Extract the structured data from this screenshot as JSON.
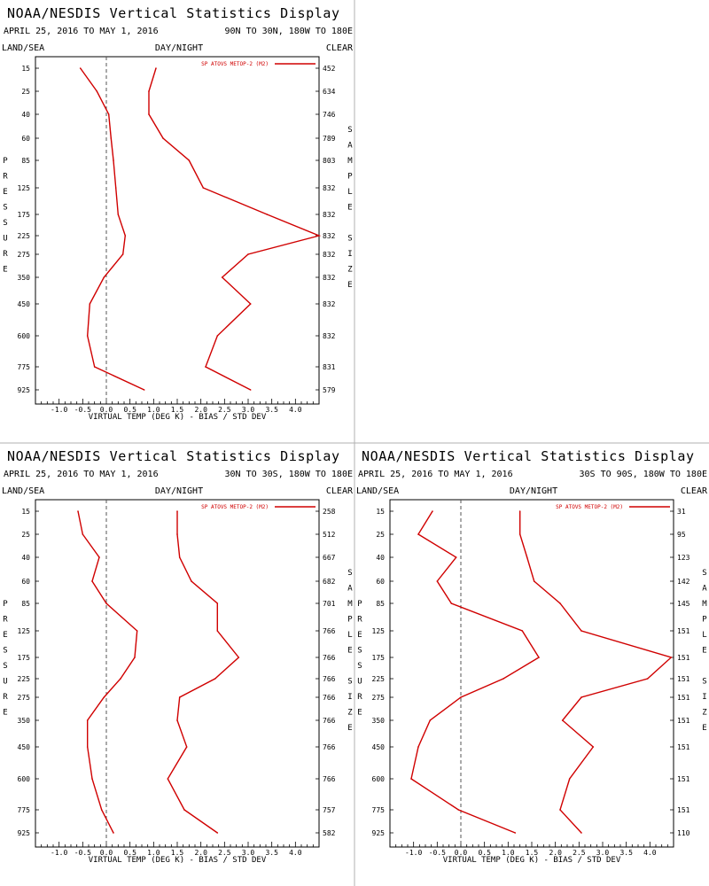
{
  "title": "NOAA/NESDIS Vertical Statistics Display",
  "date_range": "APRIL 25, 2016 TO MAY 1, 2016",
  "land_sea": "LAND/SEA",
  "day_night": "DAY/NIGHT",
  "clear": "CLEAR",
  "pressure_label": "PRESSURE",
  "sample_size_label": "SAMPLE SIZE",
  "xlabel": "VIRTUAL TEMP (DEG K) - BIAS / STD DEV",
  "series_color": "#d00000",
  "chart_data": [
    {
      "type": "line",
      "region": "90N TO 30N, 180W TO 180E",
      "legend": "SP ATOVS METOP-2 (M2)",
      "xlim": [
        -1.5,
        4.5
      ],
      "xticks": [
        "-1.0",
        "-0.5",
        "0.0",
        "0.5",
        "1.0",
        "1.5",
        "2.0",
        "2.5",
        "3.0",
        "3.5",
        "4.0"
      ],
      "pressure_levels": [
        "15",
        "25",
        "40",
        "60",
        "85",
        "125",
        "175",
        "225",
        "275",
        "350",
        "450",
        "600",
        "775",
        "925"
      ],
      "sample_size": [
        "452",
        "634",
        "746",
        "789",
        "803",
        "832",
        "832",
        "832",
        "832",
        "832",
        "832",
        "832",
        "831",
        "579"
      ],
      "series": [
        {
          "name": "BIAS",
          "values": [
            -0.55,
            -0.2,
            0.05,
            0.1,
            0.15,
            0.2,
            0.25,
            0.4,
            0.35,
            -0.05,
            -0.35,
            -0.4,
            -0.25,
            0.8
          ]
        },
        {
          "name": "STD DEV",
          "values": [
            1.05,
            0.9,
            0.9,
            1.2,
            1.75,
            2.05,
            3.4,
            4.5,
            3.0,
            2.45,
            3.05,
            2.35,
            2.1,
            3.05
          ]
        }
      ]
    },
    {
      "type": "line",
      "region": "30N TO 30S, 180W TO 180E",
      "legend": "SP ATOVS METOP-2 (M2)",
      "xlim": [
        -1.5,
        4.5
      ],
      "xticks": [
        "-1.0",
        "-0.5",
        "0.0",
        "0.5",
        "1.0",
        "1.5",
        "2.0",
        "2.5",
        "3.0",
        "3.5",
        "4.0"
      ],
      "pressure_levels": [
        "15",
        "25",
        "40",
        "60",
        "85",
        "125",
        "175",
        "225",
        "275",
        "350",
        "450",
        "600",
        "775",
        "925"
      ],
      "sample_size": [
        "258",
        "512",
        "667",
        "682",
        "701",
        "766",
        "766",
        "766",
        "766",
        "766",
        "766",
        "766",
        "757",
        "582"
      ],
      "series": [
        {
          "name": "BIAS",
          "values": [
            -0.6,
            -0.5,
            -0.15,
            -0.3,
            0.0,
            0.65,
            0.6,
            0.3,
            -0.05,
            -0.4,
            -0.4,
            -0.3,
            -0.1,
            0.15
          ]
        },
        {
          "name": "STD DEV",
          "values": [
            1.5,
            1.5,
            1.55,
            1.8,
            2.35,
            2.35,
            2.8,
            2.3,
            1.55,
            1.5,
            1.7,
            1.3,
            1.65,
            2.35
          ]
        }
      ]
    },
    {
      "type": "line",
      "region": "30S TO 90S, 180W TO 180E",
      "legend": "SP ATOVS METOP-2 (M2)",
      "xlim": [
        -1.5,
        4.5
      ],
      "xticks": [
        "-1.0",
        "-0.5",
        "0.0",
        "0.5",
        "1.0",
        "1.5",
        "2.0",
        "2.5",
        "3.0",
        "3.5",
        "4.0"
      ],
      "pressure_levels": [
        "15",
        "25",
        "40",
        "60",
        "85",
        "125",
        "175",
        "225",
        "275",
        "350",
        "450",
        "600",
        "775",
        "925"
      ],
      "sample_size": [
        "31",
        "95",
        "123",
        "142",
        "145",
        "151",
        "151",
        "151",
        "151",
        "151",
        "151",
        "151",
        "151",
        "110"
      ],
      "series": [
        {
          "name": "BIAS",
          "values": [
            -0.6,
            -0.9,
            -0.1,
            -0.5,
            -0.2,
            1.3,
            1.65,
            0.9,
            0.0,
            -0.65,
            -0.9,
            -1.05,
            -0.05,
            1.15
          ]
        },
        {
          "name": "STD DEV",
          "values": [
            1.25,
            1.25,
            1.4,
            1.55,
            2.1,
            2.55,
            4.45,
            3.95,
            2.55,
            2.15,
            2.8,
            2.3,
            2.1,
            2.55
          ]
        }
      ]
    }
  ]
}
